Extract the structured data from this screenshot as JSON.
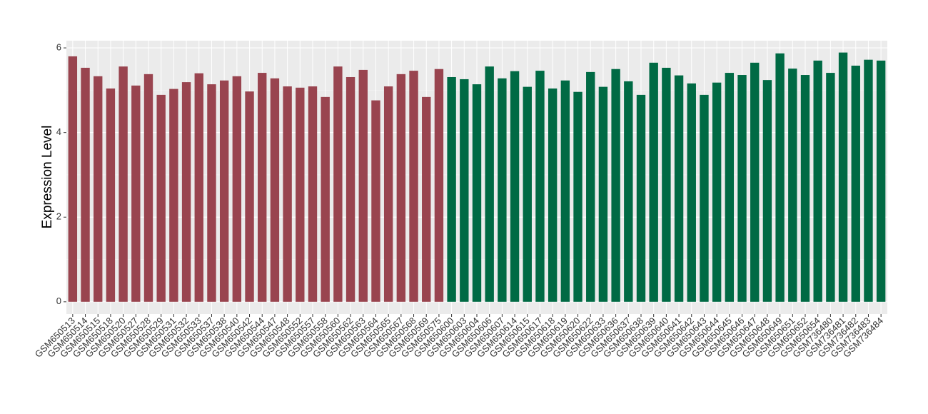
{
  "chart_data": {
    "type": "bar",
    "y_label": "Expression Level",
    "categories": [
      "GSM650513",
      "GSM650514",
      "GSM650515",
      "GSM650518",
      "GSM650520",
      "GSM650527",
      "GSM650528",
      "GSM650529",
      "GSM650531",
      "GSM650532",
      "GSM650533",
      "GSM650537",
      "GSM650538",
      "GSM650540",
      "GSM650542",
      "GSM650544",
      "GSM650547",
      "GSM650548",
      "GSM650552",
      "GSM650557",
      "GSM650558",
      "GSM650560",
      "GSM650562",
      "GSM650563",
      "GSM650564",
      "GSM650565",
      "GSM650567",
      "GSM650568",
      "GSM650569",
      "GSM650575",
      "GSM650600",
      "GSM650603",
      "GSM650604",
      "GSM650606",
      "GSM650607",
      "GSM650614",
      "GSM650615",
      "GSM650617",
      "GSM650618",
      "GSM650619",
      "GSM650620",
      "GSM650622",
      "GSM650633",
      "GSM650636",
      "GSM650637",
      "GSM650638",
      "GSM650639",
      "GSM650640",
      "GSM650641",
      "GSM650642",
      "GSM650643",
      "GSM650644",
      "GSM650645",
      "GSM650646",
      "GSM650647",
      "GSM650648",
      "GSM650649",
      "GSM650651",
      "GSM650652",
      "GSM650654",
      "GSM736480",
      "GSM736481",
      "GSM736482",
      "GSM736483",
      "GSM736484"
    ],
    "values": [
      5.8,
      5.53,
      5.33,
      5.04,
      5.56,
      5.11,
      5.38,
      4.89,
      5.03,
      5.19,
      5.4,
      5.14,
      5.23,
      5.33,
      4.97,
      5.41,
      5.28,
      5.09,
      5.06,
      5.09,
      4.84,
      5.56,
      5.31,
      5.48,
      4.76,
      5.09,
      5.38,
      5.46,
      4.84,
      5.5,
      5.31,
      5.26,
      5.14,
      5.56,
      5.28,
      5.45,
      5.08,
      5.46,
      5.04,
      5.23,
      4.96,
      5.43,
      5.08,
      5.5,
      5.21,
      4.89,
      5.65,
      5.53,
      5.35,
      5.16,
      4.89,
      5.18,
      5.41,
      5.36,
      5.65,
      5.24,
      5.87,
      5.51,
      5.36,
      5.7,
      5.41,
      5.89,
      5.58,
      5.72,
      5.7
    ],
    "colors": [
      "#99444f",
      "#99444f",
      "#99444f",
      "#99444f",
      "#99444f",
      "#99444f",
      "#99444f",
      "#99444f",
      "#99444f",
      "#99444f",
      "#99444f",
      "#99444f",
      "#99444f",
      "#99444f",
      "#99444f",
      "#99444f",
      "#99444f",
      "#99444f",
      "#99444f",
      "#99444f",
      "#99444f",
      "#99444f",
      "#99444f",
      "#99444f",
      "#99444f",
      "#99444f",
      "#99444f",
      "#99444f",
      "#99444f",
      "#99444f",
      "#006a44",
      "#006a44",
      "#006a44",
      "#006a44",
      "#006a44",
      "#006a44",
      "#006a44",
      "#006a44",
      "#006a44",
      "#006a44",
      "#006a44",
      "#006a44",
      "#006a44",
      "#006a44",
      "#006a44",
      "#006a44",
      "#006a44",
      "#006a44",
      "#006a44",
      "#006a44",
      "#006a44",
      "#006a44",
      "#006a44",
      "#006a44",
      "#006a44",
      "#006a44",
      "#006a44",
      "#006a44",
      "#006a44",
      "#006a44",
      "#006a44",
      "#006a44",
      "#006a44",
      "#006a44",
      "#006a44"
    ],
    "ylim": [
      -0.29,
      6.17
    ],
    "yticks": [
      0,
      2,
      4,
      6
    ],
    "yminor": [
      1,
      3,
      5
    ],
    "grid": true
  }
}
